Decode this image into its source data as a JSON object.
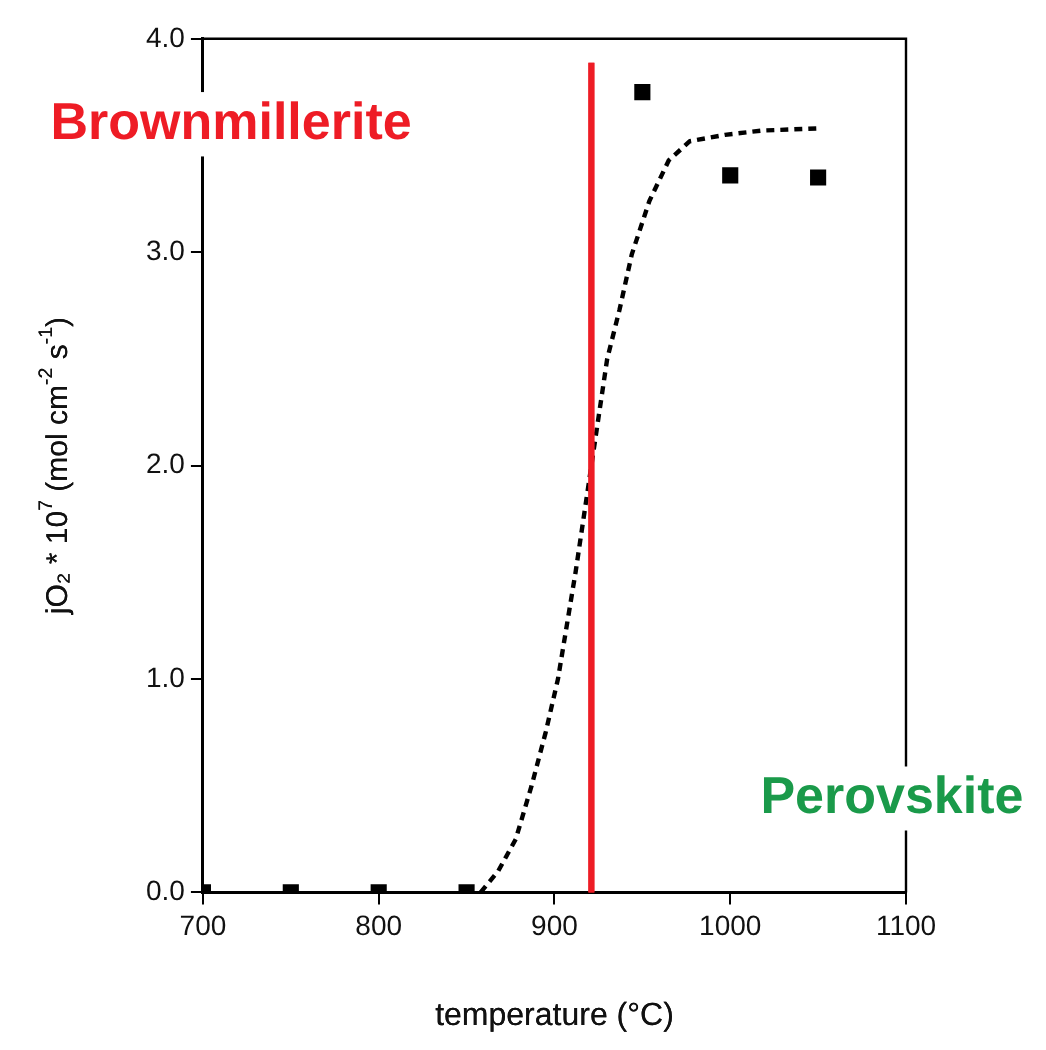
{
  "chart_data": {
    "type": "scatter",
    "xlabel": "temperature (°C)",
    "ylabel": "jO₂ * 10$^{7}$ (mol cm$^{-2}$ s$^{-1}$)",
    "xlim": [
      700,
      1100
    ],
    "xticks": [
      700,
      800,
      900,
      1000,
      1100
    ],
    "ylim": [
      0,
      4
    ],
    "yticks": [
      {
        "value": 0,
        "label": "0.0"
      },
      {
        "value": 1,
        "label": "1.0"
      },
      {
        "value": 2,
        "label": "2.0"
      },
      {
        "value": 3,
        "label": "3.0"
      },
      {
        "value": 4,
        "label": "4.0"
      }
    ],
    "grid": false,
    "legend": false,
    "series": [
      {
        "type": "scatter",
        "color": "#000000",
        "marker": "square",
        "x": [
          700,
          750,
          800,
          850,
          950,
          1000,
          1050
        ],
        "values": [
          0,
          0,
          0,
          0,
          3.75,
          3.36,
          3.35
        ]
      },
      {
        "type": "line",
        "color": "#000000",
        "marker": "none",
        "line_style": "dashed",
        "x": [
          858,
          868,
          878,
          887,
          895,
          902,
          912,
          921,
          930,
          937,
          944,
          954,
          965,
          977,
          997,
          1018,
          1049
        ],
        "values": [
          0,
          0.1,
          0.25,
          0.5,
          0.75,
          1.0,
          1.5,
          2.0,
          2.5,
          2.73,
          2.99,
          3.24,
          3.43,
          3.52,
          3.55,
          3.57,
          3.58
        ]
      }
    ],
    "ref_lines": [
      {
        "axis": "x",
        "value": 921,
        "color": "#ee1c25"
      }
    ],
    "annotations": [
      "Brownmillerite",
      "Perovskite"
    ]
  }
}
